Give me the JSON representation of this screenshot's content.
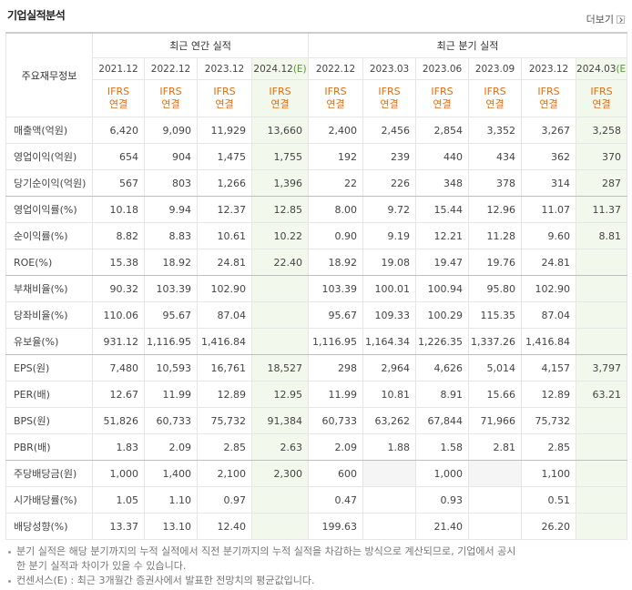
{
  "header": {
    "title": "기업실적분석",
    "more": "더보기"
  },
  "table": {
    "corner": "주요재무정보",
    "groups": [
      {
        "label": "최근 연간 실적",
        "span": 4
      },
      {
        "label": "최근 분기 실적",
        "span": 6
      }
    ],
    "columns": [
      {
        "period": "2021.12",
        "accounting": "IFRS",
        "consolidation": "연결"
      },
      {
        "period": "2022.12",
        "accounting": "IFRS",
        "consolidation": "연결"
      },
      {
        "period": "2023.12",
        "accounting": "IFRS",
        "consolidation": "연결"
      },
      {
        "period": "2024.12",
        "estimate": "(E)",
        "accounting": "IFRS",
        "consolidation": "연결"
      },
      {
        "period": "2022.12",
        "accounting": "IFRS",
        "consolidation": "연결"
      },
      {
        "period": "2023.03",
        "accounting": "IFRS",
        "consolidation": "연결"
      },
      {
        "period": "2023.06",
        "accounting": "IFRS",
        "consolidation": "연결"
      },
      {
        "period": "2023.09",
        "accounting": "IFRS",
        "consolidation": "연결"
      },
      {
        "period": "2023.12",
        "accounting": "IFRS",
        "consolidation": "연결"
      },
      {
        "period": "2024.03",
        "estimate": "(E)",
        "accounting": "IFRS",
        "consolidation": "연결"
      }
    ],
    "rows": [
      {
        "label": "매출액(억원)",
        "values": [
          "6,420",
          "9,090",
          "11,929",
          "13,660",
          "2,400",
          "2,456",
          "2,854",
          "3,352",
          "3,267",
          "3,258"
        ]
      },
      {
        "label": "영업이익(억원)",
        "values": [
          "654",
          "904",
          "1,475",
          "1,755",
          "192",
          "239",
          "440",
          "434",
          "362",
          "370"
        ]
      },
      {
        "label": "당기순이익(억원)",
        "values": [
          "567",
          "803",
          "1,266",
          "1,396",
          "22",
          "226",
          "348",
          "378",
          "314",
          "287"
        ]
      },
      {
        "label": "영업이익률(%)",
        "values": [
          "10.18",
          "9.94",
          "12.37",
          "12.85",
          "8.00",
          "9.72",
          "15.44",
          "12.96",
          "11.07",
          "11.37"
        ]
      },
      {
        "label": "순이익률(%)",
        "values": [
          "8.82",
          "8.83",
          "10.61",
          "10.22",
          "0.90",
          "9.19",
          "12.21",
          "11.28",
          "9.60",
          "8.81"
        ]
      },
      {
        "label": "ROE(%)",
        "values": [
          "15.38",
          "18.92",
          "24.81",
          "22.40",
          "18.92",
          "19.08",
          "19.47",
          "19.76",
          "24.81",
          null
        ]
      },
      {
        "label": "부채비율(%)",
        "values": [
          "90.32",
          "103.39",
          "102.90",
          null,
          "103.39",
          "100.01",
          "100.94",
          "95.80",
          "102.90",
          null
        ]
      },
      {
        "label": "당좌비율(%)",
        "values": [
          "110.06",
          "95.67",
          "87.04",
          null,
          "95.67",
          "109.33",
          "100.29",
          "115.35",
          "87.04",
          null
        ]
      },
      {
        "label": "유보율(%)",
        "values": [
          "931.12",
          "1,116.95",
          "1,416.84",
          null,
          "1,116.95",
          "1,164.34",
          "1,226.35",
          "1,337.26",
          "1,416.84",
          null
        ]
      },
      {
        "label": "EPS(원)",
        "values": [
          "7,480",
          "10,593",
          "16,761",
          "18,527",
          "298",
          "2,964",
          "4,626",
          "5,014",
          "4,157",
          "3,797"
        ]
      },
      {
        "label": "PER(배)",
        "values": [
          "12.67",
          "11.99",
          "12.89",
          "12.95",
          "11.99",
          "10.81",
          "8.91",
          "15.66",
          "12.89",
          "63.21"
        ]
      },
      {
        "label": "BPS(원)",
        "values": [
          "51,826",
          "60,733",
          "75,732",
          "91,384",
          "60,733",
          "63,262",
          "67,844",
          "71,966",
          "75,732",
          null
        ]
      },
      {
        "label": "PBR(배)",
        "values": [
          "1.83",
          "2.09",
          "2.85",
          "2.63",
          "2.09",
          "1.88",
          "1.58",
          "2.81",
          "2.85",
          null
        ]
      },
      {
        "label": "주당배당금(원)",
        "values": [
          "1,000",
          "1,400",
          "2,100",
          "2,300",
          "600",
          null,
          "1,000",
          null,
          "1,100",
          null
        ]
      },
      {
        "label": "시가배당률(%)",
        "values": [
          "1.05",
          "1.10",
          "0.97",
          null,
          "0.47",
          null,
          "0.93",
          null,
          "0.51",
          null
        ]
      },
      {
        "label": "배당성향(%)",
        "values": [
          "13.37",
          "13.10",
          "12.40",
          null,
          "199.63",
          null,
          "21.40",
          null,
          "26.20",
          null
        ]
      }
    ]
  },
  "notes": [
    "분기 실적은 해당 분기까지의 누적 실적에서 직전 분기까지의 누적 실적을 차감하는 방식으로 계산되므로, 기업에서 공시한 분기 실적과 차이가 있을 수 있습니다.",
    "컨센서스(E) : 최근 3개월간 증권사에서 발표한 전망치의 평균값입니다."
  ]
}
